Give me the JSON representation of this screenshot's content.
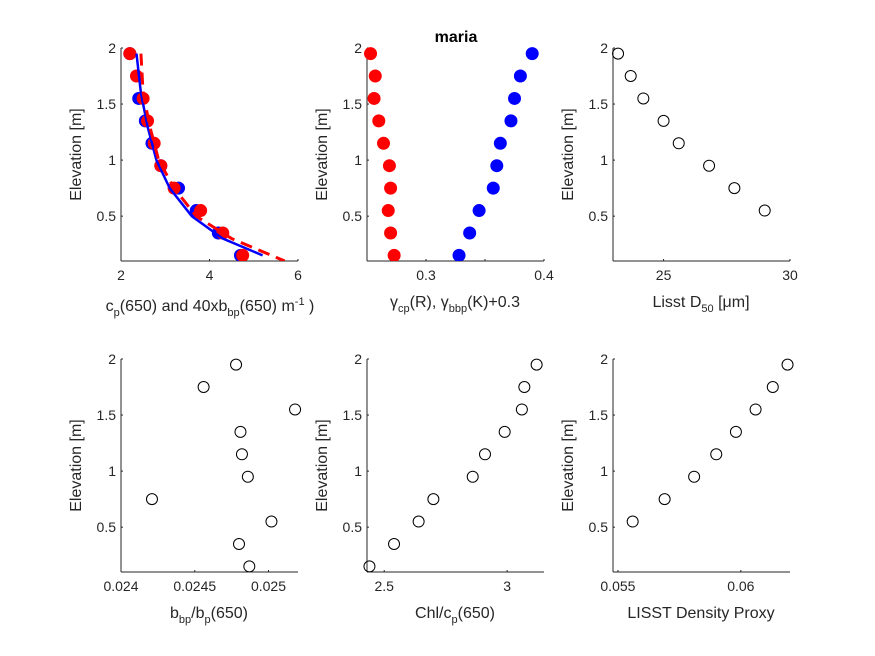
{
  "figure": {
    "title": "maria"
  },
  "chart_data": [
    {
      "type": "scatter",
      "xlabel": "c_p(650) and 40xb_bp(650) m^-1 )",
      "ylabel": "Elevation [m]",
      "xlim": [
        2,
        6
      ],
      "ylim": [
        0.1,
        2
      ],
      "xticks": [
        2,
        4,
        6
      ],
      "yticks": [
        0.5,
        1,
        1.5,
        2
      ],
      "series": [
        {
          "marker": "filled",
          "color": "#0000ff",
          "x": [
            2.2,
            2.4,
            2.55,
            2.7,
            2.9,
            3.3,
            3.7,
            4.2,
            4.7
          ],
          "y": [
            1.95,
            1.55,
            1.35,
            1.15,
            0.95,
            0.75,
            0.55,
            0.35,
            0.15
          ]
        },
        {
          "marker": "filled",
          "color": "#ff0000",
          "x": [
            2.2,
            2.35,
            2.5,
            2.6,
            2.75,
            2.9,
            3.2,
            3.8,
            4.3,
            4.75
          ],
          "y": [
            1.95,
            1.75,
            1.55,
            1.35,
            1.15,
            0.95,
            0.75,
            0.55,
            0.35,
            0.15
          ]
        },
        {
          "line": "solid",
          "color": "#0000ff",
          "x": [
            2.35,
            2.45,
            2.6,
            2.8,
            3.1,
            3.6,
            4.3,
            5.2
          ],
          "y": [
            1.95,
            1.6,
            1.3,
            1.0,
            0.75,
            0.5,
            0.3,
            0.15
          ]
        },
        {
          "line": "dashed",
          "color": "#ff0000",
          "x": [
            2.45,
            2.5,
            2.65,
            2.85,
            3.2,
            3.7,
            4.5,
            5.7
          ],
          "y": [
            1.95,
            1.6,
            1.3,
            1.0,
            0.75,
            0.5,
            0.3,
            0.1
          ]
        }
      ]
    },
    {
      "type": "scatter",
      "xlabel": "γcp(R), γbbp(K)+0.3",
      "ylabel": "Elevation [m]",
      "xlim": [
        0.25,
        0.4
      ],
      "ylim": [
        0.1,
        2
      ],
      "xticks": [
        0.3,
        0.35,
        0.4
      ],
      "xtick_labels": [
        "0.3",
        "",
        "0.4"
      ],
      "yticks": [
        0.5,
        1,
        1.5,
        2
      ],
      "series": [
        {
          "marker": "filled",
          "color": "#0000ff",
          "x": [
            0.39,
            0.38,
            0.375,
            0.372,
            0.363,
            0.36,
            0.357,
            0.345,
            0.337,
            0.328
          ],
          "y": [
            1.95,
            1.75,
            1.55,
            1.35,
            1.15,
            0.95,
            0.75,
            0.55,
            0.35,
            0.15
          ]
        },
        {
          "marker": "filled",
          "color": "#ff0000",
          "x": [
            0.253,
            0.257,
            0.256,
            0.26,
            0.264,
            0.269,
            0.27,
            0.268,
            0.27,
            0.273
          ],
          "y": [
            1.95,
            1.75,
            1.55,
            1.35,
            1.15,
            0.95,
            0.75,
            0.55,
            0.35,
            0.15
          ]
        }
      ]
    },
    {
      "type": "scatter",
      "xlabel": "Lisst D50 [μm]",
      "ylabel": "Elevation [m]",
      "xlim": [
        23,
        30
      ],
      "ylim": [
        0.1,
        2
      ],
      "xticks": [
        25,
        30
      ],
      "yticks": [
        0.5,
        1,
        1.5,
        2
      ],
      "series": [
        {
          "marker": "open",
          "color": "#000000",
          "x": [
            23.2,
            23.7,
            24.2,
            25.0,
            25.6,
            26.8,
            27.8,
            29.0
          ],
          "y": [
            1.95,
            1.75,
            1.55,
            1.35,
            1.15,
            0.95,
            0.75,
            0.55
          ]
        }
      ]
    },
    {
      "type": "scatter",
      "xlabel": "bbp/bp(650)",
      "ylabel": "Elevation [m]",
      "xlim": [
        0.024,
        0.0252
      ],
      "ylim": [
        0.1,
        2
      ],
      "xticks": [
        0.024,
        0.0245,
        0.025
      ],
      "yticks": [
        0.5,
        1,
        1.5,
        2
      ],
      "series": [
        {
          "marker": "open",
          "color": "#000000",
          "x": [
            0.02478,
            0.02456,
            0.02518,
            0.02481,
            0.02482,
            0.02486,
            0.02421,
            0.02502,
            0.0248,
            0.02487
          ],
          "y": [
            1.95,
            1.75,
            1.55,
            1.35,
            1.15,
            0.95,
            0.75,
            0.55,
            0.35,
            0.15
          ]
        }
      ]
    },
    {
      "type": "scatter",
      "xlabel": "Chl/cp(650)",
      "ylabel": "Elevation [m]",
      "xlim": [
        2.43,
        3.15
      ],
      "ylim": [
        0.1,
        2
      ],
      "xticks": [
        2.5,
        3
      ],
      "yticks": [
        0.5,
        1,
        1.5,
        2
      ],
      "series": [
        {
          "marker": "open",
          "color": "#000000",
          "x": [
            3.12,
            3.07,
            3.06,
            2.99,
            2.91,
            2.86,
            2.7,
            2.64,
            2.54,
            2.44
          ],
          "y": [
            1.95,
            1.75,
            1.55,
            1.35,
            1.15,
            0.95,
            0.75,
            0.55,
            0.35,
            0.15
          ]
        }
      ]
    },
    {
      "type": "scatter",
      "xlabel": "LISST Density Proxy",
      "ylabel": "Elevation [m]",
      "xlim": [
        0.0548,
        0.062
      ],
      "ylim": [
        0.1,
        2
      ],
      "xticks": [
        0.055,
        0.06
      ],
      "yticks": [
        0.5,
        1,
        1.5,
        2
      ],
      "series": [
        {
          "marker": "open",
          "color": "#000000",
          "x": [
            0.0619,
            0.0613,
            0.0606,
            0.0598,
            0.059,
            0.0581,
            0.0569,
            0.0556
          ],
          "y": [
            1.95,
            1.75,
            1.55,
            1.35,
            1.15,
            0.95,
            0.75,
            0.55
          ]
        }
      ]
    }
  ]
}
